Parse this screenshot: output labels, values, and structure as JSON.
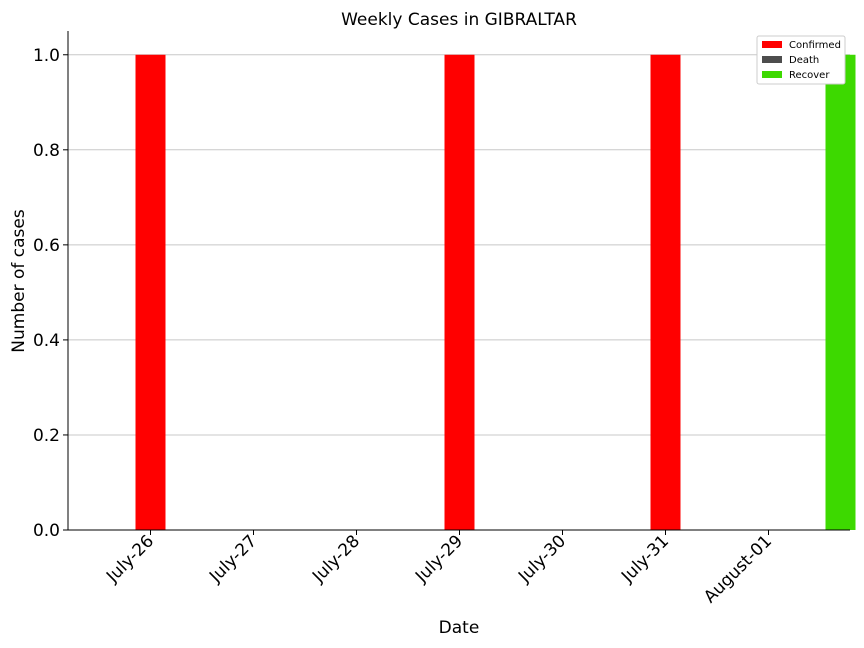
{
  "chart_data": {
    "type": "bar",
    "title": "Weekly Cases in GIBRALTAR",
    "xlabel": "Date",
    "ylabel": "Number of cases",
    "ylim": [
      0,
      1.05
    ],
    "yticks": [
      "0.0",
      "0.2",
      "0.4",
      "0.6",
      "0.8",
      "1.0"
    ],
    "categories": [
      "July-26",
      "July-27",
      "July-28",
      "July-29",
      "July-30",
      "July-31",
      "August-01"
    ],
    "grid": "horizontal",
    "legend_position": "top-right",
    "series": [
      {
        "name": "Confirmed",
        "color": "#ff0000",
        "values": [
          1,
          0,
          0,
          1,
          0,
          1,
          0
        ]
      },
      {
        "name": "Death",
        "color": "#4d4d4d",
        "values": [
          0,
          0,
          0,
          0,
          0,
          0,
          0
        ]
      },
      {
        "name": "Recover",
        "color": "#3dd900",
        "values": [
          0,
          0,
          0,
          0,
          0,
          0,
          1
        ]
      }
    ]
  }
}
